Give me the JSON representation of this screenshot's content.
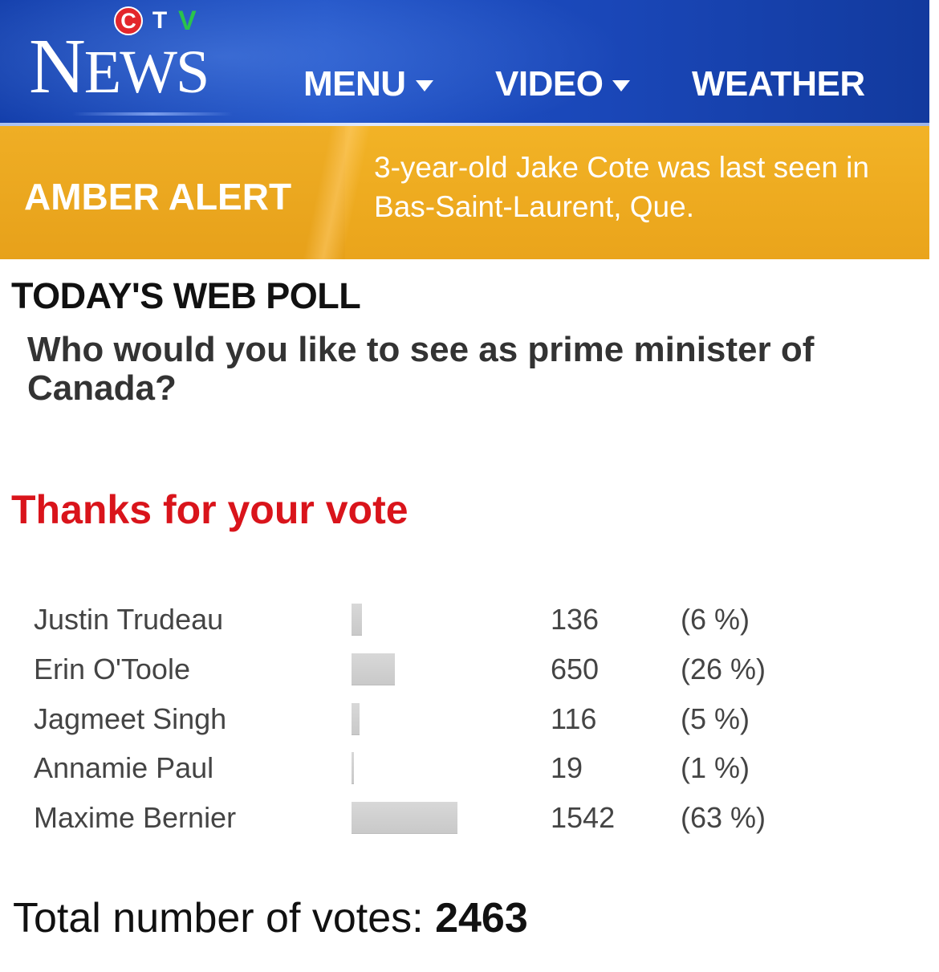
{
  "header": {
    "logo": {
      "c": "C",
      "t": "T",
      "v": "V",
      "wordmark_big": "N",
      "wordmark_small": "EWS"
    },
    "nav": [
      {
        "label": "MENU",
        "has_dropdown": true
      },
      {
        "label": "VIDEO",
        "has_dropdown": true
      },
      {
        "label": "WEATHER",
        "has_dropdown": false
      }
    ],
    "colors": {
      "brand_blue": "#1a47b8",
      "logo_red": "#e3262b",
      "logo_green": "#2ac34b"
    }
  },
  "amber_alert": {
    "title": "AMBER ALERT",
    "message_line1": "3-year-old Jake Cote was last seen in",
    "message_line2": "Bas-Saint-Laurent, Que.",
    "color": "#eaa41b"
  },
  "poll": {
    "heading": "TODAY'S WEB POLL",
    "question": "Who would you like to see as prime minister of Canada?",
    "thanks": "Thanks for your vote",
    "thanks_color": "#d9141b",
    "results": [
      {
        "name": "Justin Trudeau",
        "votes": "136",
        "percent_label": "(6 %)",
        "share": 0.06
      },
      {
        "name": "Erin O'Toole",
        "votes": "650",
        "percent_label": "(26 %)",
        "share": 0.26
      },
      {
        "name": "Jagmeet Singh",
        "votes": "116",
        "percent_label": "(5 %)",
        "share": 0.05
      },
      {
        "name": "Annamie Paul",
        "votes": "19",
        "percent_label": "(1 %)",
        "share": 0.01
      },
      {
        "name": "Maxime Bernier",
        "votes": "1542",
        "percent_label": "(63 %)",
        "share": 0.63
      }
    ],
    "total_label": "Total number of votes:",
    "total_value": "2463"
  }
}
